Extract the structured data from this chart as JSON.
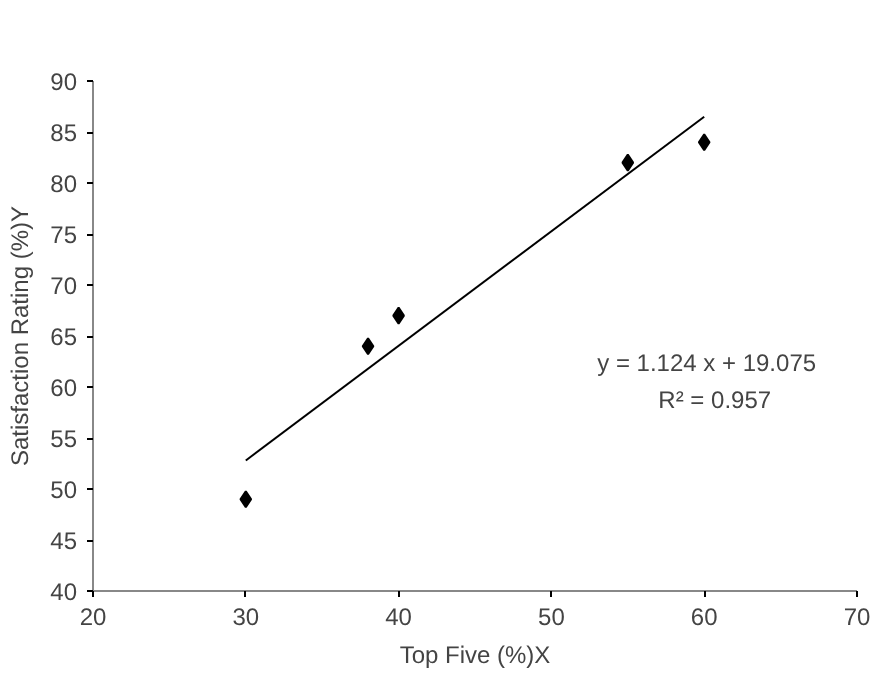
{
  "chart_data": {
    "type": "scatter",
    "xlabel": "Top Five (%)X",
    "ylabel": "Satisfaction Rating (%)Y",
    "xlim": [
      20,
      70
    ],
    "xticks": [
      20,
      30,
      40,
      50,
      60,
      70
    ],
    "ylim": [
      40,
      90
    ],
    "yticks": [
      40,
      45,
      50,
      55,
      60,
      65,
      70,
      75,
      80,
      85,
      90
    ],
    "grid": false,
    "series": [
      {
        "color": "#000000",
        "marker": "diamond",
        "x": [
          30,
          38,
          40,
          55,
          60
        ],
        "values": [
          49,
          64,
          67,
          82,
          84
        ]
      },
      {
        "type": "line",
        "color": "#000000",
        "marker": "none",
        "x": [
          30,
          60
        ],
        "values": [
          52.8,
          86.5
        ]
      }
    ],
    "annotations": [
      "y = 1.124 x + 19.075",
      "R² = 0.957"
    ]
  }
}
